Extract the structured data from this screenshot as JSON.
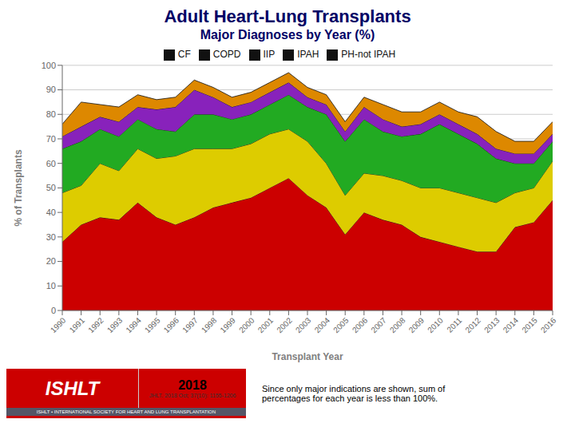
{
  "chart_data": {
    "type": "area",
    "stacked": true,
    "grid": true,
    "legend": "top",
    "title": "Adult Heart-Lung Transplants",
    "subtitle": "Major Diagnoses by Year (%)",
    "xlabel": "Transplant Year",
    "ylabel": "% of Transplants",
    "x": [
      1990,
      1991,
      1992,
      1993,
      1994,
      1995,
      1996,
      1997,
      1998,
      1999,
      2000,
      2001,
      2002,
      2003,
      2004,
      2005,
      2006,
      2007,
      2008,
      2009,
      2010,
      2011,
      2012,
      2013,
      2014,
      2015,
      2016
    ],
    "xlim": [
      1990,
      2016
    ],
    "xticks": [
      1990,
      1991,
      1992,
      1993,
      1994,
      1995,
      1996,
      1997,
      1998,
      1999,
      2000,
      2001,
      2002,
      2003,
      2004,
      2005,
      2006,
      2007,
      2008,
      2009,
      2010,
      2011,
      2012,
      2013,
      2014,
      2015,
      2016
    ],
    "ylim": [
      0,
      100
    ],
    "yticks": [
      0,
      10,
      20,
      30,
      40,
      50,
      60,
      70,
      80,
      90,
      100
    ],
    "series": [
      {
        "name": "PH-not IPAH",
        "color": "#cc0000",
        "values": [
          28,
          35,
          38,
          37,
          44,
          38,
          35,
          38,
          42,
          44,
          46,
          50,
          54,
          47,
          42,
          31,
          40,
          37,
          35,
          30,
          28,
          26,
          24,
          24,
          34,
          36,
          45
        ]
      },
      {
        "name": "IPAH",
        "color": "#ddcc00",
        "values": [
          20,
          16,
          22,
          20,
          22,
          24,
          28,
          28,
          24,
          22,
          22,
          22,
          20,
          22,
          18,
          16,
          16,
          18,
          18,
          20,
          22,
          22,
          22,
          20,
          14,
          14,
          16
        ]
      },
      {
        "name": "CF",
        "color": "#22aa22",
        "values": [
          18,
          18,
          14,
          14,
          12,
          12,
          10,
          14,
          14,
          12,
          12,
          12,
          14,
          14,
          20,
          22,
          22,
          18,
          18,
          22,
          26,
          24,
          22,
          18,
          12,
          10,
          8
        ]
      },
      {
        "name": "COPD",
        "color": "#8822bb",
        "values": [
          5,
          6,
          5,
          6,
          5,
          8,
          10,
          10,
          7,
          5,
          5,
          5,
          5,
          4,
          4,
          4,
          5,
          5,
          4,
          4,
          4,
          4,
          4,
          4,
          4,
          4,
          3
        ]
      },
      {
        "name": "IIP",
        "color": "#dd8800",
        "values": [
          5,
          10,
          5,
          6,
          5,
          4,
          4,
          4,
          4,
          4,
          4,
          4,
          4,
          4,
          4,
          4,
          4,
          6,
          6,
          5,
          5,
          5,
          7,
          7,
          5,
          5,
          5
        ]
      }
    ],
    "annotations": [
      "ISHLT",
      "ISHLT • INTERNATIONAL SOCIETY FOR HEART AND LUNG TRANSPLANTATION",
      "2018",
      "JHLT. 2018 Oct; 37(10): 1155-1206",
      "Since only major indications are shown, sum of\npercentages for each year is less than 100%."
    ]
  }
}
